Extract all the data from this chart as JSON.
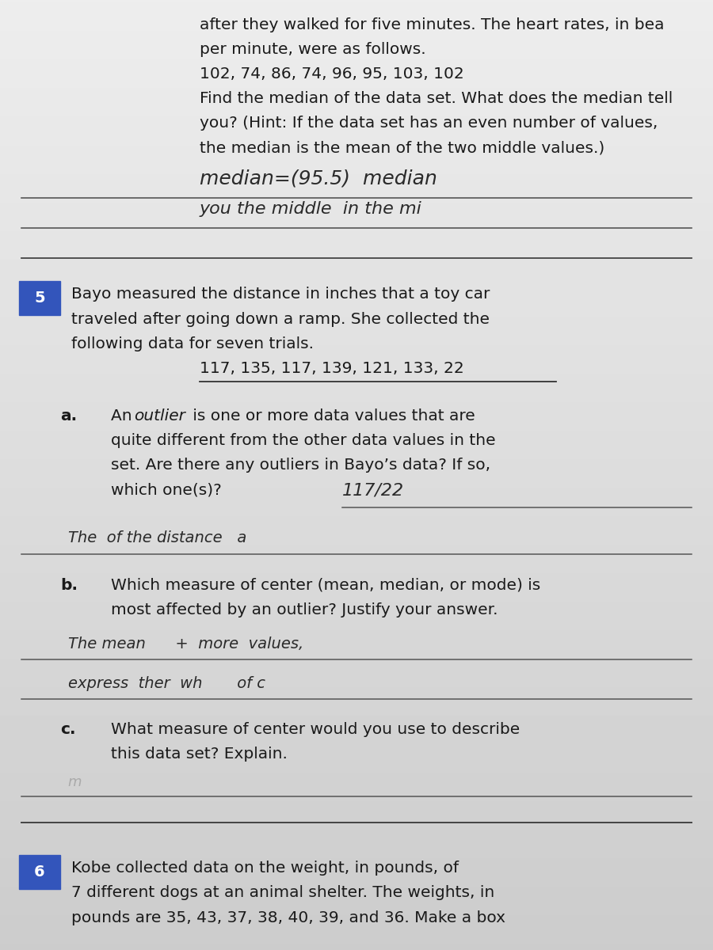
{
  "bg_color_top": "#e8e6e0",
  "bg_color": "#ccc8be",
  "text_color": "#1a1a1a",
  "handwriting_color": "#2a2a2a",
  "handwriting_color2": "#888888",
  "label_bg": "#3355bb",
  "fs_main": 14.5,
  "fs_hw": 16,
  "fs_label": 14,
  "top_lines": [
    "after they walked for five minutes. The heart rates, in bea",
    "per minute, were as follows.",
    "102, 74, 86, 74, 96, 95, 103, 102",
    "Find the median of the data set. What does the median tell",
    "you? (Hint: If the data set has an even number of values,",
    "the median is the mean of the two middle values.)"
  ],
  "hw_line1": "median=(95.5)  median",
  "hw_line2": "you the middle  in the mi",
  "sec5_lines": [
    "Bayo measured the distance in inches that a toy car",
    "traveled after going down a ramp. She collected the",
    "following data for seven trials."
  ],
  "sec5_data": "117, 135, 117, 139, 121, 133, 22",
  "part_a_intro": "An ",
  "part_a_outlier": "outlier",
  "part_a_rest": " is one or more data values that are",
  "part_a_lines": [
    "quite different from the other data values in the",
    "set. Are there any outliers in Bayo’s data? If so,",
    "which one(s)?"
  ],
  "part_a_hw": "117/22",
  "part_a_hw2": "The  of the distance   a",
  "part_b_lines": [
    "Which measure of center (mean, median, or mode) is",
    "most affected by an outlier? Justify your answer."
  ],
  "part_b_hw1": "The mean      +  more  values,",
  "part_b_hw2": "express  ther  wh       of c",
  "part_c_lines": [
    "What measure of center would you use to describe",
    "this data set? Explain."
  ],
  "part_c_hw": "m",
  "sec6_lines": [
    "Kobe collected data on the weight, in pounds, of",
    "7 different dogs at an animal shelter. The weights, in",
    "pounds are 35, 43, 37, 38, 40, 39, and 36. Make a box"
  ]
}
